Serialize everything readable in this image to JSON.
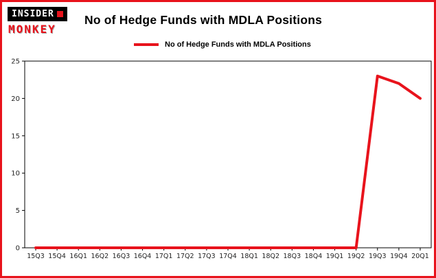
{
  "title": "No of Hedge Funds with MDLA Positions",
  "logo": {
    "line1": "INSIDER",
    "line2": "MONKEY"
  },
  "legend": {
    "label": "No of Hedge Funds with MDLA Positions"
  },
  "colors": {
    "accent": "#e8131c",
    "line": "#e8131c",
    "axis": "#000000",
    "background": "#ffffff"
  },
  "chart_data": {
    "type": "line",
    "title": "No of Hedge Funds with MDLA Positions",
    "categories": [
      "15Q3",
      "15Q4",
      "16Q1",
      "16Q2",
      "16Q3",
      "16Q4",
      "17Q1",
      "17Q2",
      "17Q3",
      "17Q4",
      "18Q1",
      "18Q2",
      "18Q3",
      "18Q4",
      "19Q1",
      "19Q2",
      "19Q3",
      "19Q4",
      "20Q1"
    ],
    "series": [
      {
        "name": "No of Hedge Funds with MDLA Positions",
        "values": [
          0,
          0,
          0,
          0,
          0,
          0,
          0,
          0,
          0,
          0,
          0,
          0,
          0,
          0,
          0,
          0,
          23,
          22,
          20
        ]
      }
    ],
    "xlabel": "",
    "ylabel": "",
    "ylim": [
      0,
      25
    ],
    "yticks": [
      0,
      5,
      10,
      15,
      20,
      25
    ],
    "grid": false,
    "legend_position": "top-left-above-plot"
  }
}
